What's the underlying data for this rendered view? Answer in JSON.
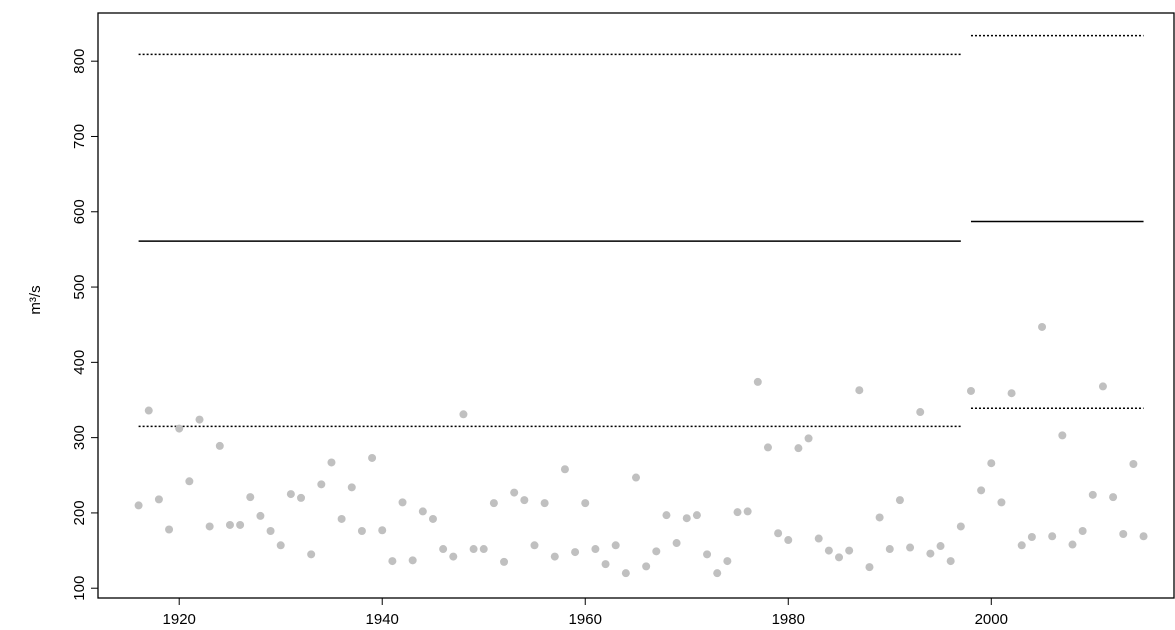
{
  "chart_data": {
    "type": "scatter",
    "y_label": "m³/s",
    "x": [
      1916,
      1917,
      1918,
      1919,
      1920,
      1921,
      1922,
      1923,
      1924,
      1925,
      1926,
      1927,
      1928,
      1929,
      1930,
      1931,
      1932,
      1933,
      1934,
      1935,
      1936,
      1937,
      1938,
      1939,
      1940,
      1941,
      1942,
      1943,
      1944,
      1945,
      1946,
      1947,
      1948,
      1949,
      1950,
      1951,
      1952,
      1953,
      1954,
      1955,
      1956,
      1957,
      1958,
      1959,
      1960,
      1961,
      1962,
      1963,
      1964,
      1965,
      1966,
      1967,
      1968,
      1969,
      1970,
      1971,
      1972,
      1973,
      1974,
      1975,
      1976,
      1977,
      1978,
      1979,
      1980,
      1981,
      1982,
      1983,
      1984,
      1985,
      1986,
      1987,
      1988,
      1989,
      1990,
      1991,
      1992,
      1993,
      1994,
      1995,
      1996,
      1997,
      1998,
      1999,
      2000,
      2001,
      2002,
      2003,
      2004,
      2005,
      2006,
      2007,
      2008,
      2009,
      2010,
      2011,
      2012,
      2013,
      2014,
      2015
    ],
    "values": [
      210,
      336,
      218,
      178,
      312,
      242,
      324,
      182,
      289,
      184,
      184,
      221,
      196,
      176,
      157,
      225,
      220,
      145,
      238,
      267,
      192,
      234,
      176,
      273,
      177,
      136,
      214,
      137,
      202,
      192,
      152,
      142,
      331,
      152,
      152,
      213,
      135,
      227,
      217,
      157,
      213,
      142,
      258,
      148,
      213,
      152,
      132,
      157,
      120,
      247,
      129,
      149,
      197,
      160,
      193,
      197,
      145,
      120,
      136,
      201,
      202,
      374,
      287,
      173,
      164,
      286,
      299,
      166,
      150,
      141,
      150,
      363,
      128,
      194,
      152,
      217,
      154,
      334,
      146,
      156,
      136,
      182,
      362,
      230,
      266,
      214,
      359,
      157,
      168,
      447,
      169,
      303,
      158,
      176,
      224,
      368,
      221,
      172,
      265,
      169
    ],
    "color": "#c0c0c0",
    "reference_lines": [
      {
        "x": [
          1916,
          1997
        ],
        "y": 561,
        "style": "solid"
      },
      {
        "x": [
          1916,
          1997
        ],
        "y": 809,
        "style": "dotted"
      },
      {
        "x": [
          1916,
          1997
        ],
        "y": 315,
        "style": "dotted"
      },
      {
        "x": [
          1998,
          2015
        ],
        "y": 587,
        "style": "solid"
      },
      {
        "x": [
          1998,
          2015
        ],
        "y": 834,
        "style": "dotted"
      },
      {
        "x": [
          1998,
          2015
        ],
        "y": 339,
        "style": "dotted"
      }
    ],
    "xlim": [
      1912,
      2018
    ],
    "xticks": [
      1920,
      1940,
      1960,
      1980,
      2000
    ],
    "ylim": [
      87,
      864
    ],
    "yticks": [
      100,
      200,
      300,
      400,
      500,
      600,
      700,
      800
    ]
  }
}
